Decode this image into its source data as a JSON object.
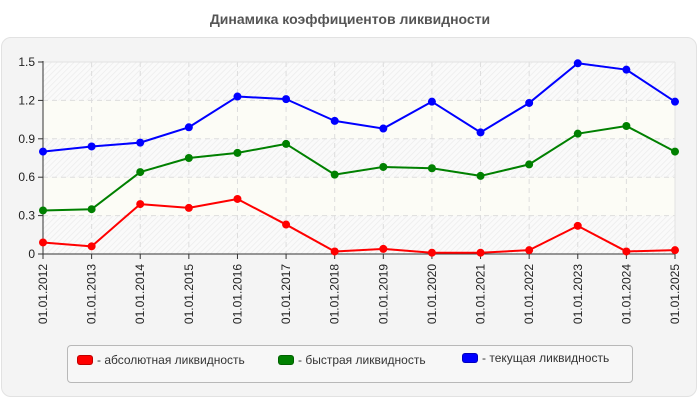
{
  "title": "Динамика коэффициентов ликвидности",
  "colors": {
    "absolute": "#ff0000",
    "quick": "#008000",
    "current": "#0000ff",
    "panel_bg": "#f4f4f4",
    "grid": "#dddddd"
  },
  "legend": {
    "items": [
      {
        "label": "- абсолютная ликвидность",
        "color": "#ff0000"
      },
      {
        "label": "- быстрая ликвидность",
        "color": "#008000"
      },
      {
        "label": "- текущая ликвидность",
        "color": "#0000ff"
      }
    ]
  },
  "chart_data": {
    "type": "line",
    "title": "Динамика коэффициентов ликвидности",
    "xlabel": "",
    "ylabel": "",
    "ylim": [
      0,
      1.5
    ],
    "yticks": [
      "0",
      "0.3",
      "0.6",
      "0.9",
      "1.2",
      "1.5"
    ],
    "grid": true,
    "legend_position": "bottom",
    "categories": [
      "01.01.2012",
      "01.01.2013",
      "01.01.2014",
      "01.01.2015",
      "01.01.2016",
      "01.01.2017",
      "01.01.2018",
      "01.01.2019",
      "01.01.2020",
      "01.01.2021",
      "01.01.2022",
      "01.01.2023",
      "01.01.2024",
      "01.01.2025"
    ],
    "series": [
      {
        "name": "абсолютная ликвидность",
        "color": "#ff0000",
        "values": [
          0.09,
          0.06,
          0.39,
          0.36,
          0.43,
          0.23,
          0.02,
          0.04,
          0.01,
          0.01,
          0.03,
          0.22,
          0.02,
          0.03
        ]
      },
      {
        "name": "быстрая ликвидность",
        "color": "#008000",
        "values": [
          0.34,
          0.35,
          0.64,
          0.75,
          0.79,
          0.86,
          0.62,
          0.68,
          0.67,
          0.61,
          0.7,
          0.94,
          1.0,
          0.8
        ]
      },
      {
        "name": "текущая ликвидность",
        "color": "#0000ff",
        "values": [
          0.8,
          0.84,
          0.87,
          0.99,
          1.23,
          1.21,
          1.04,
          0.98,
          1.19,
          0.95,
          1.18,
          1.49,
          1.44,
          1.19
        ]
      }
    ]
  }
}
